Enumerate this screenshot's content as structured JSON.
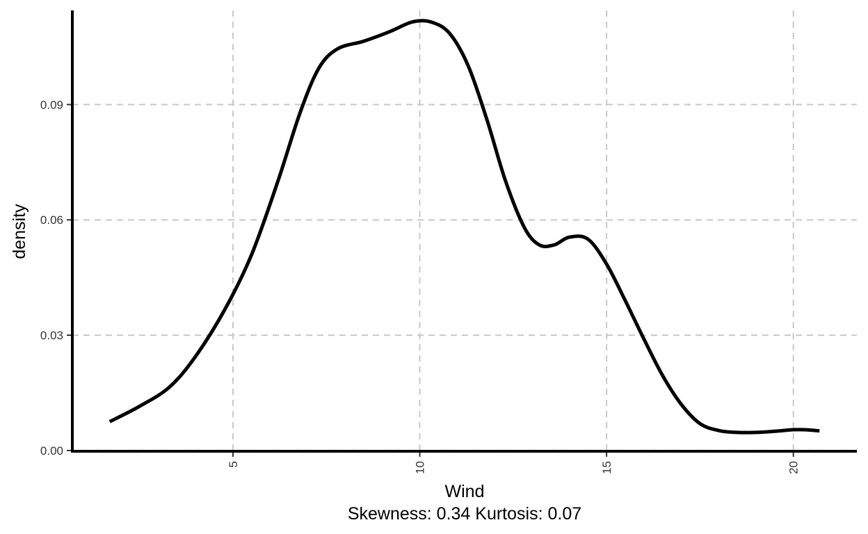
{
  "chart_data": {
    "type": "line",
    "title": "",
    "xlabel": "Wind",
    "caption": "Skewness: 0.34 Kurtosis: 0.07",
    "ylabel": "density",
    "xlim": [
      0.7,
      21.7
    ],
    "ylim": [
      -0.0002,
      0.1145
    ],
    "x_ticks": [
      5,
      10,
      15,
      20
    ],
    "y_ticks": [
      0.0,
      0.03,
      0.06,
      0.09
    ],
    "x_tick_labels": [
      "5",
      "10",
      "15",
      "20"
    ],
    "y_tick_labels": [
      "0.00",
      "0.03",
      "0.06",
      "0.09"
    ],
    "grid": true,
    "legend": "none",
    "line_color": "#000000",
    "grid_color": "#c8c8c8",
    "series": [
      {
        "x": [
          1.7,
          2.5,
          3.3,
          4.0,
          4.8,
          5.5,
          6.2,
          6.8,
          7.3,
          7.8,
          8.5,
          9.2,
          9.8,
          10.3,
          10.8,
          11.3,
          11.8,
          12.3,
          12.8,
          13.2,
          13.6,
          14.0,
          14.5,
          15.0,
          15.5,
          16.0,
          16.5,
          17.0,
          17.5,
          18.0,
          18.5,
          19.0,
          19.5,
          20.0,
          20.3,
          20.7
        ],
        "y": [
          0.0075,
          0.0115,
          0.0165,
          0.0245,
          0.037,
          0.051,
          0.07,
          0.088,
          0.0995,
          0.1045,
          0.1065,
          0.109,
          0.1115,
          0.1115,
          0.1085,
          0.1,
          0.086,
          0.07,
          0.058,
          0.0535,
          0.0535,
          0.0555,
          0.055,
          0.0485,
          0.039,
          0.029,
          0.0195,
          0.012,
          0.007,
          0.0052,
          0.0047,
          0.0047,
          0.005,
          0.0054,
          0.0054,
          0.0051
        ]
      }
    ]
  }
}
